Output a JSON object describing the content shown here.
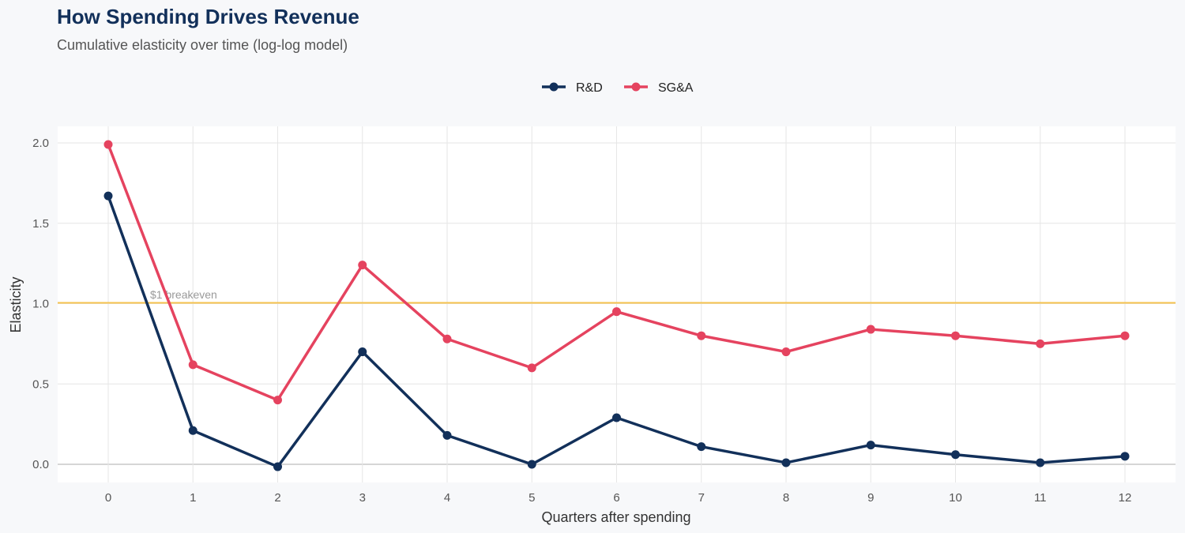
{
  "title": "How Spending Drives Revenue",
  "subtitle": "Cumulative elasticity over time (log-log model)",
  "chart_data": {
    "type": "line",
    "xlabel": "Quarters after spending",
    "ylabel": "Elasticity",
    "x": [
      0,
      1,
      2,
      3,
      4,
      5,
      6,
      7,
      8,
      9,
      10,
      11,
      12
    ],
    "xlim": [
      -0.6,
      12.6
    ],
    "ylim": [
      -0.12,
      2.1
    ],
    "yticks": [
      0.0,
      0.5,
      1.0,
      1.5,
      2.0
    ],
    "ytick_labels": [
      "0.0",
      "0.5",
      "1.0",
      "1.5",
      "2.0"
    ],
    "grid": true,
    "legend_position": "top",
    "series": [
      {
        "name": "R&D",
        "color": "#12305a",
        "values": [
          1.67,
          0.21,
          -0.015,
          0.7,
          0.18,
          0.0,
          0.29,
          0.11,
          0.01,
          0.12,
          0.06,
          0.01,
          0.05
        ]
      },
      {
        "name": "SG&A",
        "color": "#e5435f",
        "values": [
          1.99,
          0.62,
          0.4,
          1.24,
          0.78,
          0.6,
          0.95,
          0.8,
          0.7,
          0.84,
          0.8,
          0.75,
          0.8
        ]
      }
    ],
    "reference_line": {
      "y": 1.0,
      "label": "$1 breakeven",
      "color": "#f5c34e"
    }
  }
}
